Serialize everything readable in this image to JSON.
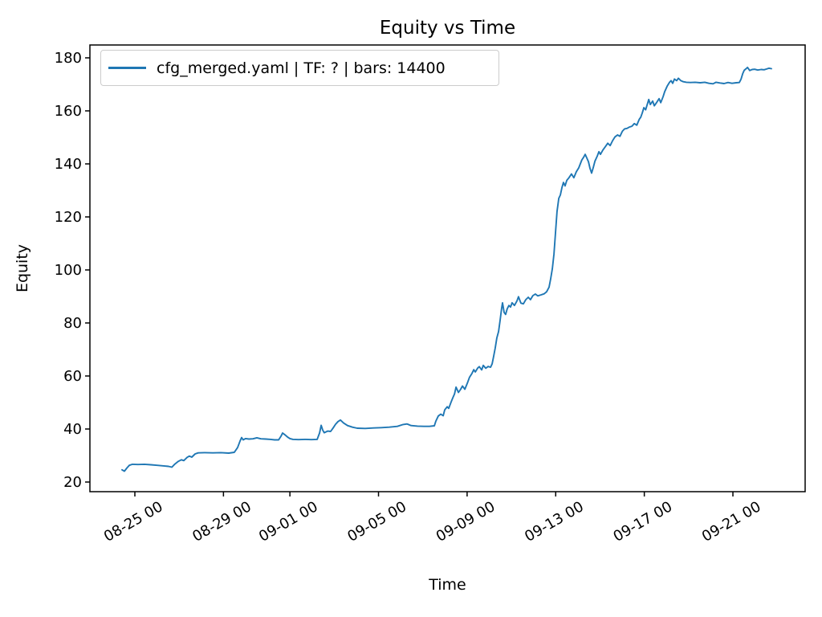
{
  "figure_title": "Equity vs Time",
  "chart_data": {
    "type": "line",
    "title": "Equity vs Time",
    "xlabel": "Time",
    "ylabel": "Equity",
    "grid": false,
    "legend_position": "upper left",
    "line_color": "#1f77b4",
    "x_axis": {
      "unit": "days since 08-25 00:00",
      "tick_positions_days": [
        0,
        4,
        7,
        11,
        15,
        19,
        23,
        27
      ],
      "tick_labels": [
        "08-25 00",
        "08-29 00",
        "09-01 00",
        "09-05 00",
        "09-09 00",
        "09-13 00",
        "09-17 00",
        "09-21 00"
      ],
      "lim_days": [
        -1.95,
        30.3
      ]
    },
    "y_axis": {
      "ticks": [
        20,
        40,
        60,
        80,
        100,
        120,
        140,
        160,
        180
      ],
      "lim": [
        16.4,
        184.2
      ]
    },
    "series": [
      {
        "name": "cfg_merged.yaml | TF: ? | bars: 14400",
        "color": "#1f77b4",
        "points_day_equity": [
          [
            -0.58,
            24.6
          ],
          [
            -0.47,
            24.1
          ],
          [
            -0.36,
            25.3
          ],
          [
            -0.25,
            26.3
          ],
          [
            -0.11,
            26.7
          ],
          [
            0.14,
            26.6
          ],
          [
            0.43,
            26.7
          ],
          [
            0.72,
            26.5
          ],
          [
            1.01,
            26.3
          ],
          [
            1.3,
            26.1
          ],
          [
            1.52,
            25.9
          ],
          [
            1.67,
            25.6
          ],
          [
            1.81,
            26.8
          ],
          [
            1.96,
            27.8
          ],
          [
            2.1,
            28.4
          ],
          [
            2.21,
            28.1
          ],
          [
            2.36,
            29.3
          ],
          [
            2.46,
            29.8
          ],
          [
            2.57,
            29.4
          ],
          [
            2.72,
            30.6
          ],
          [
            2.86,
            31.0
          ],
          [
            3.15,
            31.1
          ],
          [
            3.52,
            31.0
          ],
          [
            3.88,
            31.1
          ],
          [
            4.24,
            30.9
          ],
          [
            4.49,
            31.2
          ],
          [
            4.64,
            33.0
          ],
          [
            4.75,
            35.5
          ],
          [
            4.82,
            36.8
          ],
          [
            4.89,
            35.9
          ],
          [
            5.0,
            36.4
          ],
          [
            5.15,
            36.2
          ],
          [
            5.33,
            36.3
          ],
          [
            5.51,
            36.7
          ],
          [
            5.69,
            36.3
          ],
          [
            5.91,
            36.2
          ],
          [
            6.13,
            36.1
          ],
          [
            6.31,
            35.9
          ],
          [
            6.49,
            35.9
          ],
          [
            6.6,
            37.3
          ],
          [
            6.67,
            38.5
          ],
          [
            6.78,
            37.8
          ],
          [
            6.89,
            37.0
          ],
          [
            7.0,
            36.4
          ],
          [
            7.14,
            36.1
          ],
          [
            7.39,
            36.0
          ],
          [
            7.68,
            36.1
          ],
          [
            7.97,
            36.0
          ],
          [
            8.23,
            36.1
          ],
          [
            8.34,
            38.5
          ],
          [
            8.41,
            41.4
          ],
          [
            8.48,
            39.6
          ],
          [
            8.55,
            38.6
          ],
          [
            8.7,
            39.2
          ],
          [
            8.84,
            39.1
          ],
          [
            8.95,
            40.4
          ],
          [
            9.06,
            41.8
          ],
          [
            9.17,
            42.8
          ],
          [
            9.28,
            43.4
          ],
          [
            9.42,
            42.3
          ],
          [
            9.6,
            41.3
          ],
          [
            9.82,
            40.7
          ],
          [
            10.04,
            40.3
          ],
          [
            10.4,
            40.2
          ],
          [
            10.77,
            40.4
          ],
          [
            11.13,
            40.5
          ],
          [
            11.49,
            40.7
          ],
          [
            11.85,
            41.0
          ],
          [
            12.11,
            41.7
          ],
          [
            12.29,
            41.9
          ],
          [
            12.47,
            41.3
          ],
          [
            12.76,
            41.1
          ],
          [
            13.05,
            41.0
          ],
          [
            13.3,
            41.0
          ],
          [
            13.52,
            41.2
          ],
          [
            13.59,
            43.0
          ],
          [
            13.7,
            44.9
          ],
          [
            13.81,
            45.6
          ],
          [
            13.92,
            45.0
          ],
          [
            13.99,
            47.2
          ],
          [
            14.1,
            48.4
          ],
          [
            14.17,
            47.8
          ],
          [
            14.28,
            50.2
          ],
          [
            14.35,
            51.7
          ],
          [
            14.43,
            53.2
          ],
          [
            14.5,
            55.8
          ],
          [
            14.61,
            53.8
          ],
          [
            14.71,
            55.0
          ],
          [
            14.79,
            56.2
          ],
          [
            14.9,
            55.0
          ],
          [
            15.01,
            57.3
          ],
          [
            15.11,
            59.5
          ],
          [
            15.22,
            61.0
          ],
          [
            15.3,
            62.4
          ],
          [
            15.37,
            61.5
          ],
          [
            15.48,
            63.0
          ],
          [
            15.55,
            63.5
          ],
          [
            15.66,
            62.3
          ],
          [
            15.73,
            64.0
          ],
          [
            15.84,
            62.9
          ],
          [
            15.95,
            63.6
          ],
          [
            16.06,
            63.3
          ],
          [
            16.13,
            64.6
          ],
          [
            16.2,
            67.5
          ],
          [
            16.27,
            70.5
          ],
          [
            16.34,
            74.3
          ],
          [
            16.42,
            76.8
          ],
          [
            16.49,
            81.0
          ],
          [
            16.56,
            85.5
          ],
          [
            16.6,
            87.6
          ],
          [
            16.67,
            84.0
          ],
          [
            16.74,
            83.2
          ],
          [
            16.81,
            85.3
          ],
          [
            16.89,
            86.6
          ],
          [
            16.96,
            86.0
          ],
          [
            17.03,
            87.6
          ],
          [
            17.14,
            86.6
          ],
          [
            17.25,
            88.3
          ],
          [
            17.32,
            89.9
          ],
          [
            17.43,
            87.5
          ],
          [
            17.54,
            87.2
          ],
          [
            17.65,
            88.8
          ],
          [
            17.76,
            89.7
          ],
          [
            17.86,
            88.8
          ],
          [
            17.97,
            90.3
          ],
          [
            18.08,
            90.9
          ],
          [
            18.19,
            90.2
          ],
          [
            18.34,
            90.6
          ],
          [
            18.48,
            91.0
          ],
          [
            18.59,
            91.8
          ],
          [
            18.7,
            93.5
          ],
          [
            18.77,
            96.5
          ],
          [
            18.85,
            100.5
          ],
          [
            18.92,
            106.0
          ],
          [
            18.99,
            114.0
          ],
          [
            19.06,
            122.0
          ],
          [
            19.14,
            127.0
          ],
          [
            19.21,
            128.3
          ],
          [
            19.28,
            131.0
          ],
          [
            19.35,
            133.0
          ],
          [
            19.42,
            131.7
          ],
          [
            19.5,
            133.8
          ],
          [
            19.6,
            134.8
          ],
          [
            19.71,
            136.2
          ],
          [
            19.82,
            134.8
          ],
          [
            19.93,
            137.0
          ],
          [
            20.04,
            138.5
          ],
          [
            20.11,
            140.0
          ],
          [
            20.18,
            141.5
          ],
          [
            20.26,
            142.5
          ],
          [
            20.33,
            143.6
          ],
          [
            20.4,
            142.3
          ],
          [
            20.48,
            140.8
          ],
          [
            20.55,
            138.3
          ],
          [
            20.62,
            136.5
          ],
          [
            20.7,
            138.8
          ],
          [
            20.77,
            141.0
          ],
          [
            20.88,
            143.0
          ],
          [
            20.95,
            144.6
          ],
          [
            21.02,
            143.6
          ],
          [
            21.13,
            145.2
          ],
          [
            21.24,
            146.5
          ],
          [
            21.35,
            147.8
          ],
          [
            21.46,
            146.9
          ],
          [
            21.57,
            148.8
          ],
          [
            21.68,
            150.2
          ],
          [
            21.79,
            150.9
          ],
          [
            21.9,
            150.4
          ],
          [
            22.01,
            152.3
          ],
          [
            22.11,
            153.2
          ],
          [
            22.22,
            153.4
          ],
          [
            22.33,
            153.9
          ],
          [
            22.44,
            154.2
          ],
          [
            22.55,
            155.2
          ],
          [
            22.66,
            154.6
          ],
          [
            22.77,
            156.8
          ],
          [
            22.84,
            157.6
          ],
          [
            22.91,
            159.3
          ],
          [
            22.98,
            161.2
          ],
          [
            23.06,
            160.4
          ],
          [
            23.13,
            162.3
          ],
          [
            23.2,
            164.3
          ],
          [
            23.27,
            162.4
          ],
          [
            23.38,
            163.7
          ],
          [
            23.45,
            161.9
          ],
          [
            23.56,
            163.2
          ],
          [
            23.67,
            164.6
          ],
          [
            23.74,
            163.1
          ],
          [
            23.85,
            165.4
          ],
          [
            23.92,
            167.2
          ],
          [
            24.03,
            169.3
          ],
          [
            24.14,
            170.8
          ],
          [
            24.21,
            171.4
          ],
          [
            24.28,
            170.4
          ],
          [
            24.36,
            172.0
          ],
          [
            24.46,
            171.4
          ],
          [
            24.54,
            172.3
          ],
          [
            24.65,
            171.4
          ],
          [
            24.76,
            171.0
          ],
          [
            24.9,
            170.8
          ],
          [
            25.08,
            170.7
          ],
          [
            25.3,
            170.8
          ],
          [
            25.52,
            170.6
          ],
          [
            25.73,
            170.8
          ],
          [
            25.92,
            170.4
          ],
          [
            26.1,
            170.2
          ],
          [
            26.24,
            170.8
          ],
          [
            26.42,
            170.5
          ],
          [
            26.6,
            170.3
          ],
          [
            26.78,
            170.7
          ],
          [
            26.96,
            170.4
          ],
          [
            27.15,
            170.6
          ],
          [
            27.29,
            170.7
          ],
          [
            27.37,
            172.0
          ],
          [
            27.44,
            174.0
          ],
          [
            27.51,
            175.3
          ],
          [
            27.58,
            175.8
          ],
          [
            27.66,
            176.4
          ],
          [
            27.76,
            175.2
          ],
          [
            27.87,
            175.6
          ],
          [
            27.98,
            175.7
          ],
          [
            28.12,
            175.4
          ],
          [
            28.27,
            175.6
          ],
          [
            28.41,
            175.5
          ],
          [
            28.52,
            175.8
          ],
          [
            28.63,
            176.1
          ],
          [
            28.74,
            175.9
          ]
        ]
      }
    ]
  }
}
